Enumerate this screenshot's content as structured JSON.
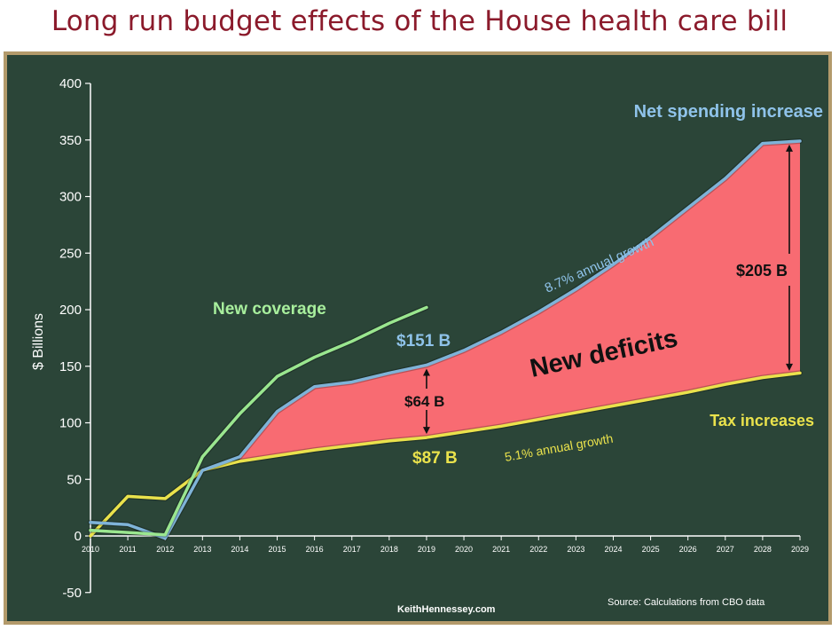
{
  "chart_data": {
    "type": "line",
    "title": "Long run budget effects of the House health care bill",
    "ylabel": "$ Billions",
    "xlabel": "",
    "ylim": [
      -50,
      400
    ],
    "yticks": [
      -50,
      0,
      50,
      100,
      150,
      200,
      250,
      300,
      350,
      400
    ],
    "x": [
      "2010",
      "2011",
      "2012",
      "2013",
      "2014",
      "2015",
      "2016",
      "2017",
      "2018",
      "2019",
      "2020",
      "2021",
      "2022",
      "2023",
      "2024",
      "2025",
      "2026",
      "2027",
      "2028",
      "2029"
    ],
    "series": [
      {
        "name": "Net spending increase",
        "color": "#7fb3d8",
        "x": [
          2010,
          2011,
          2012,
          2013,
          2014,
          2015,
          2016,
          2017,
          2018,
          2019,
          2020,
          2021,
          2022,
          2023,
          2024,
          2025,
          2026,
          2027,
          2028,
          2029
        ],
        "values": [
          12,
          10,
          -2,
          58,
          70,
          110,
          132,
          136,
          144,
          151,
          164,
          180,
          198,
          218,
          240,
          264,
          290,
          316,
          347,
          349
        ]
      },
      {
        "name": "New coverage",
        "color": "#9ae68f",
        "x": [
          2010,
          2011,
          2012,
          2013,
          2014,
          2015,
          2016,
          2017,
          2018,
          2019
        ],
        "values": [
          5,
          3,
          1,
          70,
          108,
          141,
          158,
          172,
          188,
          202
        ]
      },
      {
        "name": "Tax increases",
        "color": "#eae24c",
        "x": [
          2010,
          2011,
          2012,
          2013,
          2014,
          2015,
          2016,
          2017,
          2018,
          2019,
          2020,
          2021,
          2022,
          2023,
          2024,
          2025,
          2026,
          2027,
          2028,
          2029
        ],
        "values": [
          0,
          35,
          33,
          58,
          66,
          71,
          76,
          80,
          84,
          87,
          92,
          97,
          103,
          109,
          115,
          121,
          127,
          134,
          140,
          144
        ]
      }
    ],
    "annotations": {
      "net_spending": "Net spending increase",
      "spending_growth": "8.7% annual growth",
      "new_coverage": "New coverage",
      "val_151": "$151 B",
      "val_64": "$64 B",
      "val_87": "$87 B",
      "deficits": "New deficits",
      "val_205": "$205 B",
      "tax_increases": "Tax increases",
      "tax_growth": "5.1% annual growth",
      "website": "KeithHennessey.com",
      "source": "Source:  Calculations from CBO data"
    }
  }
}
